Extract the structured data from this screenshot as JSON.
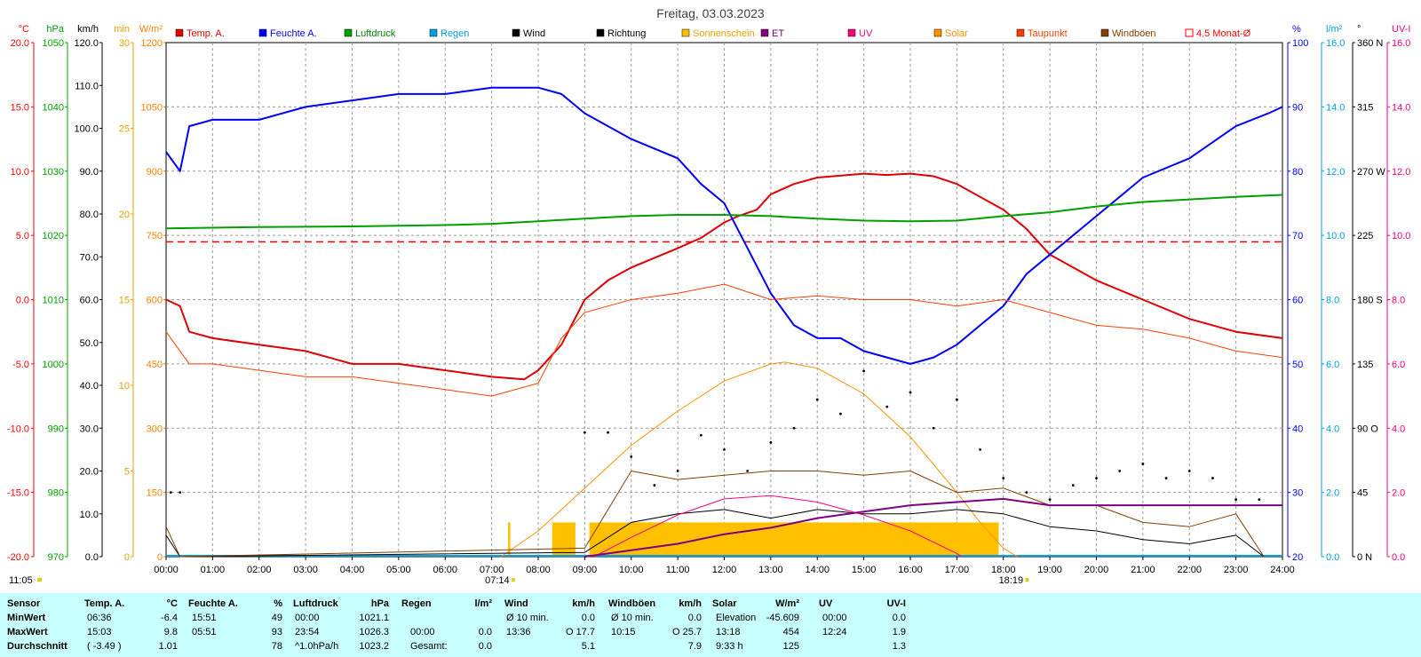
{
  "title": "Freitag, 03.03.2023",
  "legend": [
    "Temp. A.",
    "Feuchte A.",
    "Luftdruck",
    "Regen",
    "Wind",
    "Richtung",
    "Sonnenschein",
    "ET",
    "UV",
    "Solar",
    "Taupunkt",
    "Windböen",
    "4.5 Monat-Ø"
  ],
  "axes": {
    "temp": {
      "unit": "°C",
      "ticks": [
        "20.0",
        "15.0",
        "10.0",
        "5.0",
        "0.0",
        "-5.0",
        "-10.0",
        "-15.0",
        "-20.0"
      ],
      "range": [
        -20,
        20
      ],
      "color": "#ff0000"
    },
    "pressure": {
      "unit": "hPa",
      "ticks": [
        "1050",
        "1040",
        "1030",
        "1020",
        "1010",
        "1000",
        "990",
        "980",
        "970"
      ],
      "range": [
        970,
        1050
      ],
      "color": "#00a000"
    },
    "wind": {
      "unit": "km/h",
      "ticks": [
        "120.0",
        "110.0",
        "100.0",
        "90.0",
        "80.0",
        "70.0",
        "60.0",
        "50.0",
        "40.0",
        "30.0",
        "20.0",
        "10.0",
        "0.0"
      ],
      "range": [
        0,
        120
      ],
      "color": "#000000"
    },
    "sunshine": {
      "unit": "min",
      "ticks": [
        "30",
        "25",
        "20",
        "15",
        "10",
        "5",
        "0"
      ],
      "range": [
        0,
        30
      ],
      "color": "#e8a000"
    },
    "solar": {
      "unit": "W/m²",
      "ticks": [
        "1200",
        "1050",
        "900",
        "750",
        "600",
        "450",
        "300",
        "150",
        "0"
      ],
      "range": [
        0,
        1200
      ],
      "color": "#ff8000"
    },
    "humidity": {
      "unit": "%",
      "ticks": [
        "100",
        "90",
        "80",
        "70",
        "60",
        "50",
        "40",
        "30",
        "20"
      ],
      "range": [
        20,
        100
      ],
      "color": "#0000ff"
    },
    "rain": {
      "unit": "l/m²",
      "ticks": [
        "16.0",
        "14.0",
        "12.0",
        "10.0",
        "8.0",
        "6.0",
        "4.0",
        "2.0",
        "0.0"
      ],
      "range": [
        0,
        16
      ],
      "color": "#00a0e0"
    },
    "direction": {
      "unit": "°",
      "ticks": [
        "360 N",
        "315",
        "270 W",
        "225",
        "180 S",
        "135",
        "90 O",
        "45",
        "0 N"
      ],
      "range": [
        0,
        360
      ],
      "color": "#000000"
    },
    "uv": {
      "unit": "UV-I",
      "ticks": [
        "16.0",
        "14.0",
        "12.0",
        "10.0",
        "8.0",
        "6.0",
        "4.0",
        "2.0",
        "0.0"
      ],
      "range": [
        0,
        16
      ],
      "color": "#ff0080"
    }
  },
  "x_ticks": [
    "00:00",
    "01:00",
    "02:00",
    "03:00",
    "04:00",
    "05:00",
    "06:00",
    "07:00",
    "08:00",
    "09:00",
    "10:00",
    "11:00",
    "12:00",
    "13:00",
    "14:00",
    "15:00",
    "16:00",
    "17:00",
    "18:00",
    "19:00",
    "20:00",
    "21:00",
    "22:00",
    "23:00",
    "24:00"
  ],
  "sunrise": "07:14",
  "sunset": "18:19",
  "time_now": "11:05",
  "chart_data": {
    "type": "line",
    "x_unit": "hour",
    "x_range": [
      0,
      24
    ],
    "series": [
      {
        "name": "Temp. A.",
        "axis": "temp",
        "color": "#e00000",
        "x": [
          0,
          0.3,
          0.5,
          1,
          2,
          3,
          4,
          5,
          6,
          7,
          7.7,
          8,
          8.5,
          9,
          9.5,
          10,
          11,
          11.5,
          12,
          12.3,
          12.7,
          13,
          13.5,
          14,
          15,
          15.5,
          16,
          16.5,
          17,
          17.5,
          18,
          18.5,
          19,
          20,
          21,
          22,
          23,
          24
        ],
        "values": [
          0,
          -0.5,
          -2.5,
          -3,
          -3.5,
          -4,
          -5,
          -5,
          -5.5,
          -6,
          -6.2,
          -5.5,
          -3.5,
          0,
          1.5,
          2.5,
          4,
          4.8,
          6,
          6.5,
          7,
          8.2,
          9,
          9.5,
          9.8,
          9.7,
          9.8,
          9.6,
          9,
          8,
          7,
          5.5,
          3.5,
          1.5,
          0,
          -1.5,
          -2.5,
          -3
        ]
      },
      {
        "name": "Feuchte A.",
        "axis": "humidity",
        "color": "#0000ff",
        "x": [
          0,
          0.3,
          0.5,
          1,
          2,
          3,
          4,
          5,
          6,
          7,
          8,
          8.5,
          9,
          9.5,
          10,
          11,
          11.5,
          12,
          12.5,
          13,
          13.5,
          14,
          14.5,
          15,
          15.5,
          16,
          16.5,
          17,
          17.5,
          18,
          18.5,
          19,
          20,
          21,
          22,
          23,
          23.7,
          24
        ],
        "values": [
          83,
          80,
          87,
          88,
          88,
          90,
          91,
          92,
          92,
          93,
          93,
          92,
          89,
          87,
          85,
          82,
          78,
          75,
          68,
          61,
          56,
          54,
          54,
          52,
          51,
          50,
          51,
          53,
          56,
          59,
          64,
          67,
          73,
          79,
          82,
          87,
          89,
          90
        ]
      },
      {
        "name": "Luftdruck",
        "axis": "pressure",
        "color": "#00a000",
        "x": [
          0,
          2,
          4,
          6,
          7,
          8,
          9,
          10,
          11,
          12,
          13,
          14,
          15,
          16,
          17,
          18,
          19,
          20,
          21,
          22,
          23,
          24
        ],
        "values": [
          1021.1,
          1021.3,
          1021.4,
          1021.6,
          1021.8,
          1022.2,
          1022.6,
          1023,
          1023.2,
          1023.2,
          1023,
          1022.6,
          1022.3,
          1022.2,
          1022.3,
          1023,
          1023.6,
          1024.5,
          1025.2,
          1025.6,
          1026,
          1026.3
        ]
      },
      {
        "name": "Taupunkt",
        "axis": "temp",
        "color": "#ff4000",
        "x": [
          0,
          0.5,
          1,
          2,
          3,
          4,
          5,
          6,
          7,
          8,
          8.5,
          9,
          9.5,
          10,
          11,
          12,
          13,
          14,
          15,
          16,
          17,
          18,
          19,
          20,
          21,
          22,
          23,
          24
        ],
        "values": [
          -2.5,
          -5,
          -5,
          -5.5,
          -6,
          -6,
          -6.5,
          -7,
          -7.5,
          -6.5,
          -3,
          -1,
          -0.5,
          0,
          0.5,
          1.2,
          0,
          0.3,
          0,
          0,
          -0.5,
          0,
          -1,
          -2,
          -2.3,
          -3,
          -4,
          -4.5
        ]
      },
      {
        "name": "Solar",
        "axis": "solar",
        "color": "#ff9000",
        "x": [
          7.2,
          8,
          9,
          10,
          11,
          12,
          13,
          13.3,
          14,
          15,
          16,
          17,
          17.5,
          18,
          18.3
        ],
        "values": [
          0,
          60,
          160,
          260,
          340,
          410,
          450,
          454,
          440,
          380,
          280,
          150,
          80,
          20,
          0
        ]
      },
      {
        "name": "Wind",
        "axis": "wind",
        "color": "#000000",
        "x": [
          0,
          0.3,
          9,
          10,
          11,
          12,
          13,
          14,
          15,
          16,
          17,
          18,
          19,
          20,
          21,
          22,
          23,
          23.6
        ],
        "values": [
          5,
          0,
          1,
          8,
          10,
          11,
          9,
          11,
          10,
          10,
          11,
          10,
          7,
          6,
          4,
          3,
          5,
          0
        ]
      },
      {
        "name": "Windböen",
        "axis": "wind",
        "color": "#804000",
        "x": [
          0,
          0.3,
          9,
          10,
          11,
          12,
          13,
          14,
          15,
          16,
          17,
          18,
          19,
          20,
          21,
          22,
          23,
          23.6
        ],
        "values": [
          7,
          0,
          2,
          20,
          18,
          19,
          20,
          20,
          19,
          20,
          15,
          16,
          12,
          12,
          8,
          7,
          10,
          0
        ]
      },
      {
        "name": "UV",
        "axis": "uv",
        "color": "#ff0080",
        "x": [
          9.2,
          10,
          11,
          12,
          13,
          14,
          15,
          16,
          17,
          17.1
        ],
        "values": [
          0,
          0.6,
          1.3,
          1.8,
          1.9,
          1.7,
          1.3,
          0.8,
          0.1,
          0
        ]
      },
      {
        "name": "ET",
        "axis": "rain",
        "color": "#800080",
        "x": [
          9,
          10,
          11,
          12,
          13,
          14,
          15,
          16,
          17,
          18,
          19,
          24
        ],
        "values": [
          0,
          0.2,
          0.4,
          0.7,
          0.9,
          1.2,
          1.4,
          1.6,
          1.7,
          1.8,
          1.6,
          1.6
        ]
      },
      {
        "name": "Richtung",
        "axis": "direction",
        "color": "#000000",
        "x": [
          0.1,
          0.3,
          9,
          9.5,
          10,
          10.5,
          11,
          11.5,
          12,
          12.5,
          13,
          13.5,
          14,
          14.5,
          15,
          15.5,
          16,
          16.5,
          17,
          17.5,
          18,
          18.5,
          19,
          19.5,
          20,
          20.5,
          21,
          21.5,
          22,
          22.5,
          23,
          23.5
        ],
        "values": [
          45,
          45,
          87,
          87,
          70,
          50,
          60,
          85,
          75,
          60,
          80,
          90,
          110,
          100,
          130,
          105,
          115,
          90,
          110,
          75,
          55,
          45,
          40,
          50,
          55,
          60,
          65,
          55,
          60,
          55,
          40,
          40
        ]
      }
    ],
    "sunshine": {
      "axis": "sunshine",
      "color": "#ffc000",
      "blocks": [
        [
          7.35,
          7.4,
          2
        ],
        [
          8.3,
          8.8,
          2
        ],
        [
          9.1,
          17.9,
          2
        ]
      ]
    },
    "reference_line": {
      "name": "4.5 Monat-Ø",
      "axis": "temp",
      "value": 4.5,
      "color": "#ff0000"
    }
  },
  "stats": {
    "headers": {
      "sensor": "Sensor",
      "temp": "Temp. A.",
      "temp_u": "°C",
      "hum": "Feuchte A.",
      "hum_u": "%",
      "press": "Luftdruck",
      "press_u": "hPa",
      "rain": "Regen",
      "rain_u": "l/m²",
      "wind": "Wind",
      "wind_u": "km/h",
      "gust": "Windböen",
      "gust_u": "km/h",
      "solar": "Solar",
      "solar_u": "W/m²",
      "uv": "UV",
      "uv_u": "UV-I"
    },
    "rows": [
      {
        "label": "MinWert",
        "temp_t": "06:36",
        "temp_v": "-6.4",
        "hum_t": "15:51",
        "hum_v": "49",
        "press_t": "00:00",
        "press_v": "1021.1",
        "rain_t": "",
        "rain_v": "",
        "wind_t": "Ø 10 min.",
        "wind_v": "0.0",
        "gust_t": "Ø 10 min.",
        "gust_v": "0.0",
        "solar_t": "Elevation",
        "solar_v": "-45.609",
        "uv_t": "00:00",
        "uv_v": "0.0"
      },
      {
        "label": "MaxWert",
        "temp_t": "15:03",
        "temp_v": "9.8",
        "hum_t": "05:51",
        "hum_v": "93",
        "press_t": "23:54",
        "press_v": "1026.3",
        "rain_t": "00:00",
        "rain_v": "0.0",
        "wind_t": "13:36",
        "wind_v": "O 17.7",
        "gust_t": "10:15",
        "gust_v": "O 25.7",
        "solar_t": "13:18",
        "solar_v": "454",
        "uv_t": "12:24",
        "uv_v": "1.9"
      },
      {
        "label": "Durchschnitt",
        "temp_t": "( -3.49 )",
        "temp_v": "1.01",
        "hum_t": "",
        "hum_v": "78",
        "press_t": "^1.0hPa/h",
        "press_v": "1023.2",
        "rain_t": "Gesamt:",
        "rain_v": "0.0",
        "wind_t": "",
        "wind_v": "5.1",
        "gust_t": "",
        "gust_v": "7.9",
        "solar_t": "9:33 h",
        "solar_v": "125",
        "uv_t": "",
        "uv_v": "1.3"
      }
    ]
  }
}
